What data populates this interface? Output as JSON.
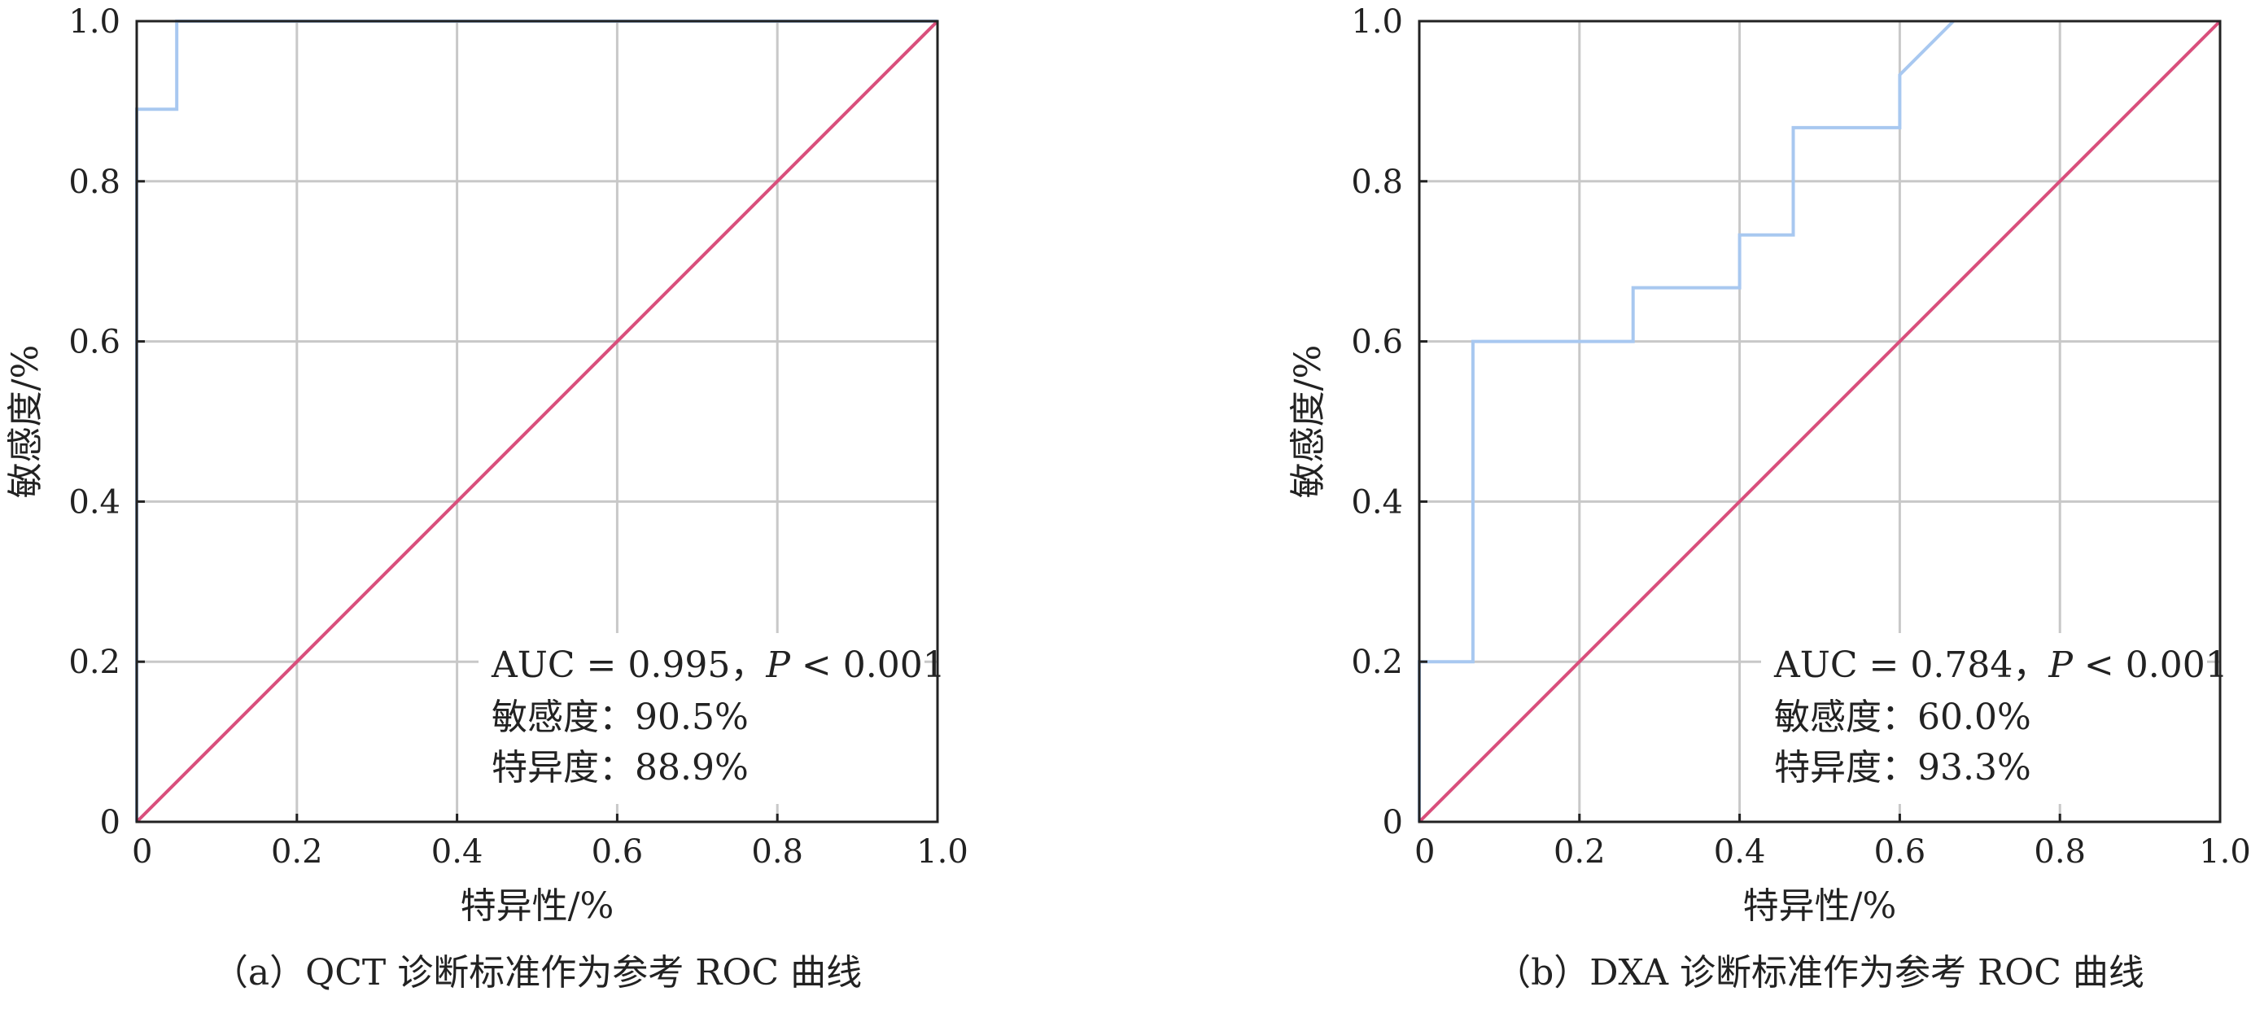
{
  "chart_data": [
    {
      "type": "line",
      "id": "a",
      "xlabel": "特异性/%",
      "ylabel": "敏感度/%",
      "xlim": [
        0,
        1
      ],
      "ylim": [
        0,
        1
      ],
      "xtick_labels": [
        "0",
        "0.2",
        "0.4",
        "0.6",
        "0.8",
        "1.0"
      ],
      "ytick_labels": [
        "0",
        "0.2",
        "0.4",
        "0.6",
        "0.8",
        "1.0"
      ],
      "grid": true,
      "caption": "（a）QCT 诊断标准作为参考 ROC 曲线",
      "annotation": {
        "auc_text": "AUC = 0.995，",
        "p_symbol": "P",
        "p_text": " < 0.001",
        "sensitivity_text": "敏感度：90.5%",
        "specificity_text": "特异度：88.9%"
      },
      "series": [
        {
          "role": "roc",
          "color": "#a8c8f0",
          "x": [
            0,
            0,
            0.05,
            0.05,
            1.0
          ],
          "y": [
            0,
            0.89,
            0.89,
            1.0,
            1.0
          ]
        },
        {
          "role": "reference",
          "color": "#d94f7c",
          "x": [
            0,
            1
          ],
          "y": [
            0,
            1
          ]
        }
      ]
    },
    {
      "type": "line",
      "id": "b",
      "xlabel": "特异性/%",
      "ylabel": "敏感度/%",
      "xlim": [
        0,
        1
      ],
      "ylim": [
        0,
        1
      ],
      "xtick_labels": [
        "0",
        "0.2",
        "0.4",
        "0.6",
        "0.8",
        "1.0"
      ],
      "ytick_labels": [
        "0",
        "0.2",
        "0.4",
        "0.6",
        "0.8",
        "1.0"
      ],
      "grid": true,
      "caption": "（b）DXA 诊断标准作为参考 ROC 曲线",
      "annotation": {
        "auc_text": "AUC = 0.784，",
        "p_symbol": "P",
        "p_text": " < 0.001",
        "sensitivity_text": "敏感度：60.0%",
        "specificity_text": "特异度：93.3%"
      },
      "series": [
        {
          "role": "roc",
          "color": "#a8c8f0",
          "x": [
            0,
            0,
            0.067,
            0.067,
            0.267,
            0.267,
            0.4,
            0.4,
            0.467,
            0.467,
            0.6,
            0.6,
            0.667
          ],
          "y": [
            0,
            0.2,
            0.2,
            0.6,
            0.6,
            0.667,
            0.667,
            0.733,
            0.733,
            0.867,
            0.867,
            0.933,
            1.0
          ]
        },
        {
          "role": "reference",
          "color": "#d94f7c",
          "x": [
            0,
            1
          ],
          "y": [
            0,
            1
          ]
        }
      ]
    }
  ]
}
